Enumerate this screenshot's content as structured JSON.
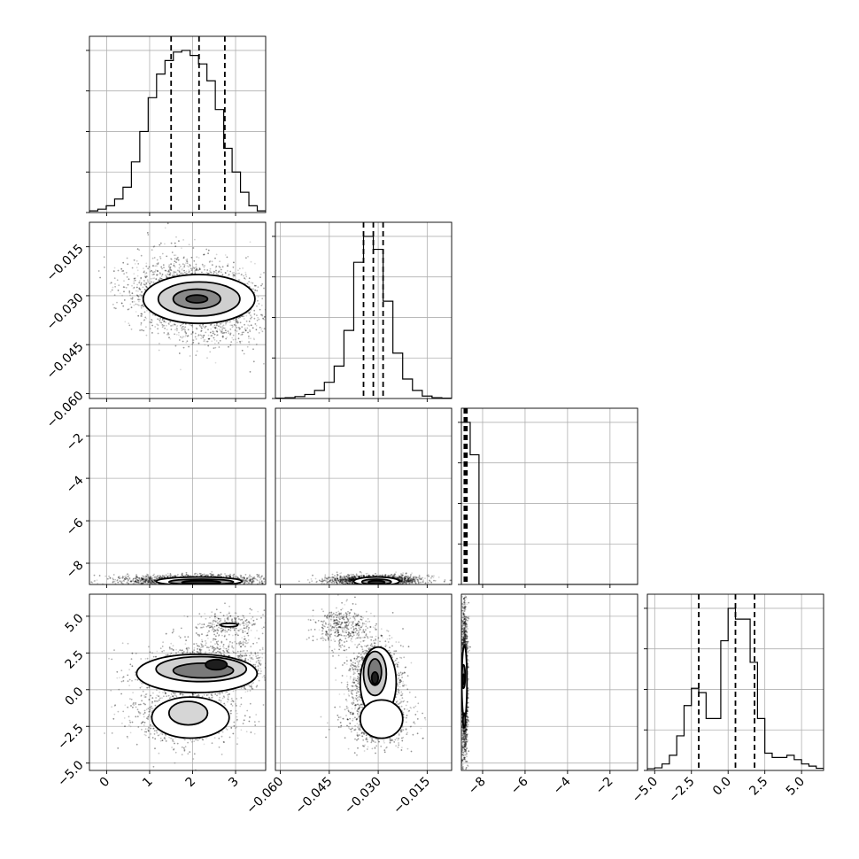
{
  "chart_data": {
    "type": "corner",
    "grid": true,
    "params": [
      {
        "range": [
          -0.4,
          3.7
        ],
        "ticks": [
          {
            "v": 0,
            "label": "0"
          },
          {
            "v": 1,
            "label": "1"
          },
          {
            "v": 2,
            "label": "2"
          },
          {
            "v": 3,
            "label": "3"
          }
        ],
        "hist": [
          1,
          2,
          4,
          8,
          15,
          30,
          48,
          68,
          82,
          90,
          95,
          96,
          93,
          88,
          78,
          61,
          38,
          24,
          12,
          4,
          1
        ],
        "quantiles": [
          1.5,
          2.15,
          2.75
        ]
      },
      {
        "range": [
          -0.0615,
          -0.0075
        ],
        "ticks": [
          {
            "v": -0.06,
            "label": "−0.060"
          },
          {
            "v": -0.045,
            "label": "−0.045"
          },
          {
            "v": -0.03,
            "label": "−0.030"
          },
          {
            "v": -0.015,
            "label": "−0.015"
          }
        ],
        "hist": [
          0.2,
          0.5,
          1.2,
          2.5,
          5,
          10,
          20,
          42,
          84,
          100,
          92,
          60,
          28,
          12,
          5,
          1.5,
          0.5,
          0.2
        ],
        "quantiles": [
          -0.0345,
          -0.0315,
          -0.0285
        ]
      },
      {
        "range": [
          -9.0,
          -0.7
        ],
        "ticks": [
          {
            "v": -8,
            "label": "−8"
          },
          {
            "v": -6,
            "label": "−6"
          },
          {
            "v": -4,
            "label": "−4"
          },
          {
            "v": -2,
            "label": "−2"
          }
        ],
        "hist": [
          100,
          80,
          0,
          0,
          0,
          0,
          0,
          0,
          0,
          0,
          0,
          0,
          0,
          0,
          0,
          0,
          0,
          0,
          0,
          0
        ],
        "quantiles": [
          -8.86,
          -8.8,
          -8.74
        ]
      },
      {
        "range": [
          -5.5,
          6.5
        ],
        "ticks": [
          {
            "v": -5,
            "label": "−5.0"
          },
          {
            "v": -2.5,
            "label": "−2.5"
          },
          {
            "v": 0,
            "label": "0.0"
          },
          {
            "v": 2.5,
            "label": "2.5"
          },
          {
            "v": 5,
            "label": "5.0"
          }
        ],
        "y_ticks": [
          {
            "v": -5,
            "label": "−5.0"
          },
          {
            "v": -2.5,
            "label": "−2.5"
          },
          {
            "v": 0,
            "label": "0.0"
          },
          {
            "v": 2.5,
            "label": "2.5"
          },
          {
            "v": 5,
            "label": "5.0"
          }
        ],
        "hist": [
          0.8,
          1.2,
          3,
          7,
          16,
          30,
          38,
          36,
          24,
          24,
          60,
          75,
          70,
          70,
          50,
          24,
          8,
          6,
          6,
          7,
          5,
          3,
          2,
          1
        ],
        "quantiles": [
          -2.0,
          0.5,
          1.8
        ]
      }
    ],
    "y_axis_ticks": {
      "1": [
        {
          "v": -0.015,
          "label": "−0.015"
        },
        {
          "v": -0.03,
          "label": "−0.030"
        },
        {
          "v": -0.045,
          "label": "−0.045"
        },
        {
          "v": -0.06,
          "label": "−0.060"
        }
      ],
      "2": [
        {
          "v": -2,
          "label": "−2"
        },
        {
          "v": -4,
          "label": "−4"
        },
        {
          "v": -6,
          "label": "−6"
        },
        {
          "v": -8,
          "label": "−8"
        }
      ],
      "3": [
        {
          "v": 5,
          "label": "5.0"
        },
        {
          "v": 2.5,
          "label": "2.5"
        },
        {
          "v": 0,
          "label": "0.0"
        },
        {
          "v": -2.5,
          "label": "−2.5"
        },
        {
          "v": -5,
          "label": "−5.0"
        }
      ]
    },
    "scatter_clusters": {
      "1-0": [
        {
          "mx": 2.1,
          "my": -0.031,
          "sx": 0.75,
          "sy": 0.006,
          "n": 2600,
          "rho": -0.25
        }
      ],
      "2-0": [
        {
          "mx": 2.0,
          "my": -8.8,
          "sx": 0.8,
          "sy": 0.12,
          "n": 1800,
          "rho": 0
        }
      ],
      "2-1": [
        {
          "mx": -0.031,
          "my": -8.8,
          "sx": 0.007,
          "sy": 0.12,
          "n": 1800,
          "rho": 0
        }
      ],
      "3-0": [
        {
          "mx": 2.3,
          "my": 1.3,
          "sx": 0.75,
          "sy": 1.0,
          "n": 1500,
          "rho": 0.2
        },
        {
          "mx": 1.8,
          "my": -1.9,
          "sx": 0.65,
          "sy": 0.9,
          "n": 900,
          "rho": 0
        },
        {
          "mx": 2.8,
          "my": 4.4,
          "sx": 0.4,
          "sy": 0.5,
          "n": 250,
          "rho": 0
        }
      ],
      "3-1": [
        {
          "mx": -0.031,
          "my": 0.8,
          "sx": 0.004,
          "sy": 1.3,
          "n": 1300,
          "rho": 0
        },
        {
          "mx": -0.03,
          "my": -2.0,
          "sx": 0.005,
          "sy": 0.9,
          "n": 800,
          "rho": 0
        },
        {
          "mx": -0.041,
          "my": 4.3,
          "sx": 0.004,
          "sy": 0.7,
          "n": 400,
          "rho": 0
        }
      ],
      "3-2": [
        {
          "mx": -8.85,
          "my": 0.5,
          "sx": 0.07,
          "sy": 2.6,
          "n": 2000,
          "rho": 0
        }
      ]
    },
    "density_ellipses": {
      "1-0": [
        {
          "cx": 2.15,
          "cy": -0.031,
          "rx": 1.3,
          "ry": 0.0075,
          "fill": "#ffffff"
        },
        {
          "cx": 2.15,
          "cy": -0.031,
          "rx": 0.95,
          "ry": 0.0052,
          "fill": "#cfcfcf"
        },
        {
          "cx": 2.1,
          "cy": -0.031,
          "rx": 0.55,
          "ry": 0.003,
          "fill": "#8a8a8a"
        },
        {
          "cx": 2.1,
          "cy": -0.031,
          "rx": 0.25,
          "ry": 0.0012,
          "fill": "#3a3a3a"
        }
      ],
      "2-0": [
        {
          "cx": 2.15,
          "cy": -8.85,
          "rx": 1.0,
          "ry": 0.2,
          "fill": "#ffffff"
        },
        {
          "cx": 2.2,
          "cy": -8.88,
          "rx": 0.75,
          "ry": 0.13,
          "fill": "#9a9a9a"
        },
        {
          "cx": 2.2,
          "cy": -8.9,
          "rx": 0.45,
          "ry": 0.08,
          "fill": "#2e2e2e"
        }
      ],
      "2-1": [
        {
          "cx": -0.0305,
          "cy": -8.85,
          "rx": 0.007,
          "ry": 0.2,
          "fill": "#ffffff"
        },
        {
          "cx": -0.0305,
          "cy": -8.88,
          "rx": 0.0045,
          "ry": 0.13,
          "fill": "#9a9a9a"
        },
        {
          "cx": -0.0305,
          "cy": -8.9,
          "rx": 0.0025,
          "ry": 0.08,
          "fill": "#2e2e2e"
        }
      ],
      "3-0": [
        {
          "cx": 2.1,
          "cy": 1.1,
          "rx": 1.4,
          "ry": 1.3,
          "fill": "#ffffff"
        },
        {
          "cx": 1.95,
          "cy": -1.9,
          "rx": 0.9,
          "ry": 1.4,
          "fill": "#ffffff"
        },
        {
          "cx": 2.2,
          "cy": 1.4,
          "rx": 1.05,
          "ry": 0.85,
          "fill": "#cfcfcf"
        },
        {
          "cx": 2.25,
          "cy": 1.3,
          "rx": 0.7,
          "ry": 0.5,
          "fill": "#7a7a7a"
        },
        {
          "cx": 2.55,
          "cy": 1.7,
          "rx": 0.25,
          "ry": 0.35,
          "fill": "#1e1e1e"
        },
        {
          "cx": 1.9,
          "cy": -1.6,
          "rx": 0.45,
          "ry": 0.8,
          "fill": "#d6d6d6"
        },
        {
          "cx": 2.85,
          "cy": 4.4,
          "rx": 0.2,
          "ry": 0.12,
          "fill": "#ffffff"
        }
      ],
      "3-1": [
        {
          "cx": -0.03,
          "cy": 0.5,
          "rx": 0.0055,
          "ry": 2.4,
          "fill": "#ffffff"
        },
        {
          "cx": -0.029,
          "cy": -2.0,
          "rx": 0.0065,
          "ry": 1.3,
          "fill": "#ffffff"
        },
        {
          "cx": -0.031,
          "cy": 1.1,
          "rx": 0.0035,
          "ry": 1.5,
          "fill": "#c8c8c8"
        },
        {
          "cx": -0.031,
          "cy": 1.2,
          "rx": 0.002,
          "ry": 0.9,
          "fill": "#7a7a7a"
        },
        {
          "cx": -0.031,
          "cy": 0.8,
          "rx": 0.001,
          "ry": 0.4,
          "fill": "#1e1e1e"
        }
      ],
      "3-2": [
        {
          "cx": -8.86,
          "cy": 0.5,
          "rx": 0.12,
          "ry": 2.5,
          "fill": "#ffffff"
        },
        {
          "cx": -8.87,
          "cy": -2.1,
          "rx": 0.05,
          "ry": 0.5,
          "fill": "#cfcfcf"
        },
        {
          "cx": -8.9,
          "cy": 0.9,
          "rx": 0.08,
          "ry": 0.8,
          "fill": "#7a7a7a"
        },
        {
          "cx": -8.9,
          "cy": 0.7,
          "rx": 0.05,
          "ry": 0.35,
          "fill": "#1e1e1e"
        }
      ]
    }
  }
}
